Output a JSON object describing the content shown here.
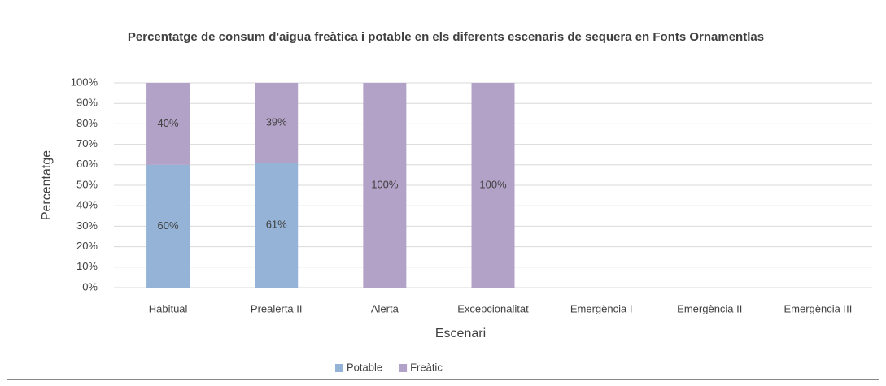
{
  "chart_data": {
    "type": "stacked_bar",
    "title": "Percentatge de consum d'aigua freàtica i potable en els diferents escenaris de sequera en Fonts Ornamentlas",
    "x_label": "Escenari",
    "y_label": "Percentatge",
    "categories": [
      "Habitual",
      "Prealerta II",
      "Alerta",
      "Excepcionalitat",
      "Emergència I",
      "Emergència II",
      "Emergència III"
    ],
    "series": [
      {
        "name": "Potable",
        "color": "#95b3d7",
        "values": [
          60,
          61,
          0,
          0,
          null,
          null,
          null
        ],
        "value_labels": [
          "60%",
          "61%",
          null,
          null,
          null,
          null,
          null
        ]
      },
      {
        "name": "Freàtic",
        "color": "#b3a2c7",
        "values": [
          40,
          39,
          100,
          100,
          null,
          null,
          null
        ],
        "value_labels": [
          "40%",
          "39%",
          "100%",
          "100%",
          null,
          null,
          null
        ]
      }
    ],
    "ylim": [
      0,
      100
    ],
    "yticks": [
      {
        "value": 0,
        "label": "0%"
      },
      {
        "value": 10,
        "label": "10%"
      },
      {
        "value": 20,
        "label": "20%"
      },
      {
        "value": 30,
        "label": "30%"
      },
      {
        "value": 40,
        "label": "40%"
      },
      {
        "value": 50,
        "label": "50%"
      },
      {
        "value": 60,
        "label": "60%"
      },
      {
        "value": 70,
        "label": "70%"
      },
      {
        "value": 80,
        "label": "80%"
      },
      {
        "value": 90,
        "label": "90%"
      },
      {
        "value": 100,
        "label": "100%"
      }
    ],
    "grid": true,
    "legend": "bottom"
  }
}
